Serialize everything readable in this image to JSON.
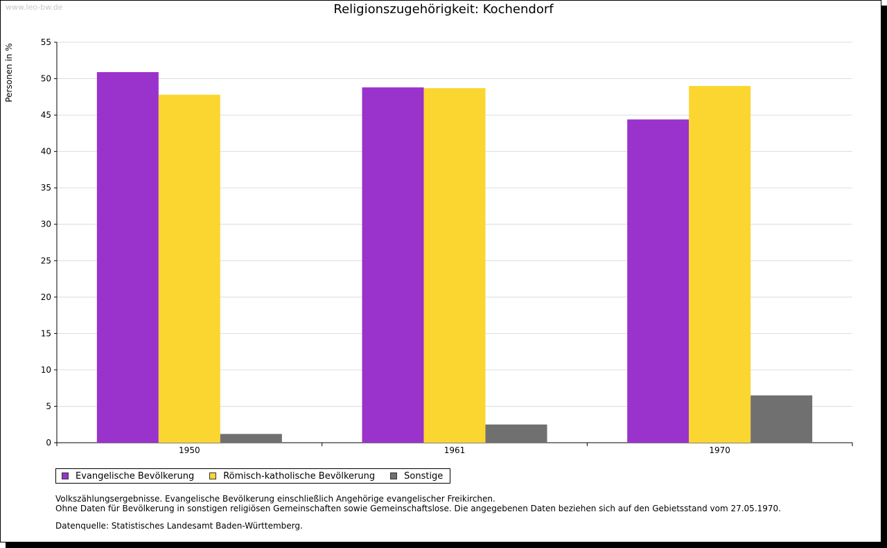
{
  "watermark": "www.leo-bw.de",
  "chart_data": {
    "type": "bar",
    "title": "Religionszugehörigkeit: Kochendorf",
    "xlabel": "",
    "ylabel": "Personen in %",
    "ylim": [
      0,
      55
    ],
    "yticks": [
      0,
      5,
      10,
      15,
      20,
      25,
      30,
      35,
      40,
      45,
      50,
      55
    ],
    "grid": true,
    "categories": [
      "1950",
      "1961",
      "1970"
    ],
    "series": [
      {
        "name": "Evangelische Bevölkerung",
        "color": "#9933cc",
        "values": [
          50.9,
          48.8,
          44.4
        ]
      },
      {
        "name": "Römisch-katholische Bevölkerung",
        "color": "#fcd630",
        "values": [
          47.8,
          48.7,
          49.0
        ]
      },
      {
        "name": "Sonstige",
        "color": "#707070",
        "values": [
          1.2,
          2.5,
          6.5
        ]
      }
    ],
    "legend_position": "bottom-left"
  },
  "notes": [
    "Volkszählungsergebnisse. Evangelische Bevölkerung einschließlich Angehörige evangelischer Freikirchen.",
    "Ohne Daten für Bevölkerung in sonstigen religiösen Gemeinschaften sowie Gemeinschaftslose. Die angegebenen Daten beziehen sich auf den Gebietsstand vom 27.05.1970."
  ],
  "source": "Datenquelle: Statistisches Landesamt Baden-Württemberg."
}
